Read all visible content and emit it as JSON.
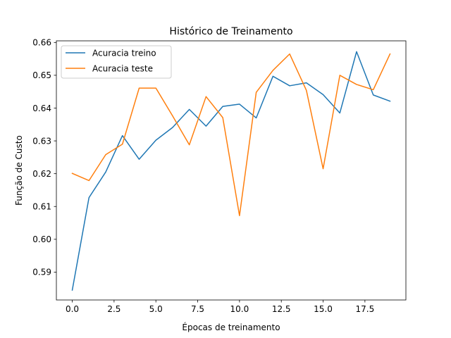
{
  "chart_data": {
    "type": "line",
    "title": "Histórico de Treinamento",
    "xlabel": "Épocas de treinamento",
    "ylabel": "Função de Custo",
    "xlim": [
      -0.95,
      19.95
    ],
    "ylim": [
      0.5815,
      0.6605
    ],
    "x_ticks": [
      0.0,
      2.5,
      5.0,
      7.5,
      10.0,
      12.5,
      15.0,
      17.5
    ],
    "x_tick_labels": [
      "0.0",
      "2.5",
      "5.0",
      "7.5",
      "10.0",
      "12.5",
      "15.0",
      "17.5"
    ],
    "y_ticks": [
      0.59,
      0.6,
      0.61,
      0.62,
      0.63,
      0.64,
      0.65,
      0.66
    ],
    "y_tick_labels": [
      "0.59",
      "0.60",
      "0.61",
      "0.62",
      "0.63",
      "0.64",
      "0.65",
      "0.66"
    ],
    "grid": false,
    "legend_position": "top-left",
    "x": [
      0,
      1,
      2,
      3,
      4,
      5,
      6,
      7,
      8,
      9,
      10,
      11,
      12,
      13,
      14,
      15,
      16,
      17,
      18,
      19
    ],
    "series": [
      {
        "name": "Acuracia treino",
        "color": "#1f77b4",
        "values": [
          0.5845,
          0.6127,
          0.6205,
          0.6316,
          0.6244,
          0.6302,
          0.6341,
          0.6396,
          0.6345,
          0.6405,
          0.6412,
          0.637,
          0.6497,
          0.6468,
          0.6477,
          0.6441,
          0.6385,
          0.6572,
          0.644,
          0.6421
        ]
      },
      {
        "name": "Acuracia teste",
        "color": "#ff7f0e",
        "values": [
          0.6201,
          0.6179,
          0.6258,
          0.629,
          0.6461,
          0.6461,
          0.6376,
          0.6288,
          0.6435,
          0.6371,
          0.6072,
          0.6448,
          0.6515,
          0.6565,
          0.6454,
          0.6215,
          0.65,
          0.6472,
          0.6456,
          0.6565
        ]
      }
    ]
  }
}
